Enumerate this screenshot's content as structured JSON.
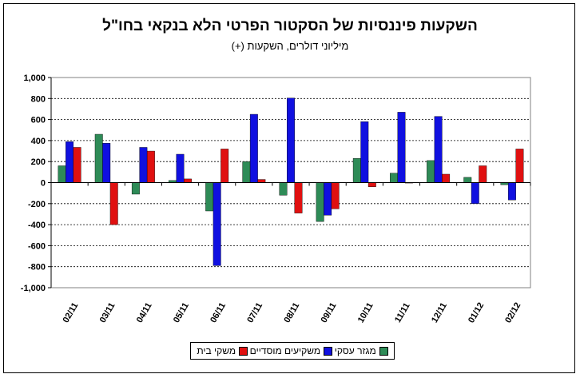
{
  "chart_data": {
    "type": "bar",
    "title": "השקעות פיננסיות של הסקטור הפרטי הלא בנקאי בחו\"ל",
    "subtitle": "מיליוני דולרים, השקעות (+)",
    "categories": [
      "02/11",
      "03/11",
      "04/11",
      "05/11",
      "06/11",
      "07/11",
      "08/11",
      "09/11",
      "10/11",
      "11/11",
      "12/11",
      "01/12",
      "02/12"
    ],
    "ylim": [
      -1000,
      1000
    ],
    "yticks": [
      -1000,
      -800,
      -600,
      -400,
      -200,
      0,
      200,
      400,
      600,
      800,
      1000
    ],
    "ytick_labels": [
      "-1,000",
      "-800",
      "-600",
      "-400",
      "-200",
      "0",
      "200",
      "400",
      "600",
      "800",
      "1,000"
    ],
    "grid": true,
    "legend_position": "bottom",
    "series": [
      {
        "name": "מגזר עסקי",
        "color": "#2e8b57",
        "values": [
          160,
          460,
          -110,
          20,
          -270,
          200,
          -120,
          -370,
          230,
          90,
          210,
          50,
          -20
        ]
      },
      {
        "name": "משקיעים מוסדיים",
        "color": "#1010e0",
        "values": [
          390,
          375,
          335,
          270,
          -790,
          650,
          805,
          -310,
          580,
          670,
          630,
          -200,
          -165
        ]
      },
      {
        "name": "משקי בית",
        "color": "#e01010",
        "values": [
          335,
          -400,
          300,
          35,
          320,
          30,
          -290,
          -250,
          -40,
          0,
          80,
          160,
          320
        ]
      }
    ]
  }
}
